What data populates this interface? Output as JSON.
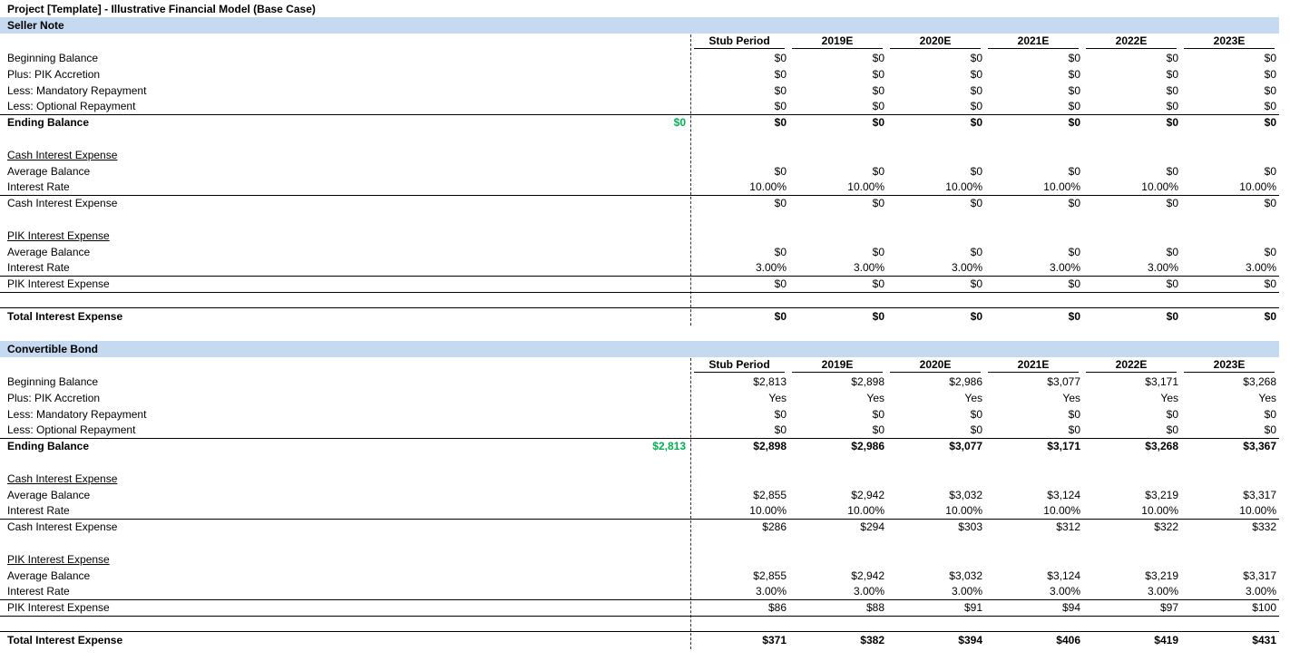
{
  "title": "Project [Template] - Illustrative Financial Model (Base Case)",
  "colors": {
    "band": "#c5d9f1",
    "green": "#00b050"
  },
  "periods": [
    "Stub Period",
    "2019E",
    "2020E",
    "2021E",
    "2022E",
    "2023E"
  ],
  "sections": [
    {
      "name": "Seller Note",
      "rows": [
        {
          "label": "Beginning Balance",
          "values": [
            "$0",
            "$0",
            "$0",
            "$0",
            "$0",
            "$0"
          ]
        },
        {
          "label": "Plus: PIK Accretion",
          "values": [
            "$0",
            "$0",
            "$0",
            "$0",
            "$0",
            "$0"
          ]
        },
        {
          "label": "Less: Mandatory Repayment",
          "values": [
            "$0",
            "$0",
            "$0",
            "$0",
            "$0",
            "$0"
          ]
        },
        {
          "label": "Less: Optional Repayment",
          "values": [
            "$0",
            "$0",
            "$0",
            "$0",
            "$0",
            "$0"
          ]
        },
        {
          "label": "Ending Balance",
          "opening": "$0",
          "values": [
            "$0",
            "$0",
            "$0",
            "$0",
            "$0",
            "$0"
          ]
        },
        {
          "label": "Cash Interest Expense"
        },
        {
          "label": "Average Balance",
          "values": [
            "$0",
            "$0",
            "$0",
            "$0",
            "$0",
            "$0"
          ]
        },
        {
          "label": "Interest Rate",
          "values": [
            "10.00%",
            "10.00%",
            "10.00%",
            "10.00%",
            "10.00%",
            "10.00%"
          ]
        },
        {
          "label": "Cash Interest Expense",
          "values": [
            "$0",
            "$0",
            "$0",
            "$0",
            "$0",
            "$0"
          ]
        },
        {
          "label": "PIK Interest Expense"
        },
        {
          "label": "Average Balance",
          "values": [
            "$0",
            "$0",
            "$0",
            "$0",
            "$0",
            "$0"
          ]
        },
        {
          "label": "Interest Rate",
          "values": [
            "3.00%",
            "3.00%",
            "3.00%",
            "3.00%",
            "3.00%",
            "3.00%"
          ]
        },
        {
          "label": "PIK Interest Expense",
          "values": [
            "$0",
            "$0",
            "$0",
            "$0",
            "$0",
            "$0"
          ]
        },
        {
          "label": "Total Interest Expense",
          "values": [
            "$0",
            "$0",
            "$0",
            "$0",
            "$0",
            "$0"
          ]
        }
      ]
    },
    {
      "name": "Convertible Bond",
      "rows": [
        {
          "label": "Beginning Balance",
          "values": [
            "$2,813",
            "$2,898",
            "$2,986",
            "$3,077",
            "$3,171",
            "$3,268"
          ]
        },
        {
          "label": "Plus: PIK Accretion",
          "values": [
            "Yes",
            "Yes",
            "Yes",
            "Yes",
            "Yes",
            "Yes"
          ]
        },
        {
          "label": "Less: Mandatory Repayment",
          "values": [
            "$0",
            "$0",
            "$0",
            "$0",
            "$0",
            "$0"
          ]
        },
        {
          "label": "Less: Optional Repayment",
          "values": [
            "$0",
            "$0",
            "$0",
            "$0",
            "$0",
            "$0"
          ]
        },
        {
          "label": "Ending Balance",
          "opening": "$2,813",
          "values": [
            "$2,898",
            "$2,986",
            "$3,077",
            "$3,171",
            "$3,268",
            "$3,367"
          ]
        },
        {
          "label": "Cash Interest Expense"
        },
        {
          "label": "Average Balance",
          "values": [
            "$2,855",
            "$2,942",
            "$3,032",
            "$3,124",
            "$3,219",
            "$3,317"
          ]
        },
        {
          "label": "Interest Rate",
          "values": [
            "10.00%",
            "10.00%",
            "10.00%",
            "10.00%",
            "10.00%",
            "10.00%"
          ]
        },
        {
          "label": "Cash Interest Expense",
          "values": [
            "$286",
            "$294",
            "$303",
            "$312",
            "$322",
            "$332"
          ]
        },
        {
          "label": "PIK Interest Expense"
        },
        {
          "label": "Average Balance",
          "values": [
            "$2,855",
            "$2,942",
            "$3,032",
            "$3,124",
            "$3,219",
            "$3,317"
          ]
        },
        {
          "label": "Interest Rate",
          "values": [
            "3.00%",
            "3.00%",
            "3.00%",
            "3.00%",
            "3.00%",
            "3.00%"
          ]
        },
        {
          "label": "PIK Interest Expense",
          "values": [
            "$86",
            "$88",
            "$91",
            "$94",
            "$97",
            "$100"
          ]
        },
        {
          "label": "Total Interest Expense",
          "values": [
            "$371",
            "$382",
            "$394",
            "$406",
            "$419",
            "$431"
          ]
        }
      ]
    }
  ]
}
